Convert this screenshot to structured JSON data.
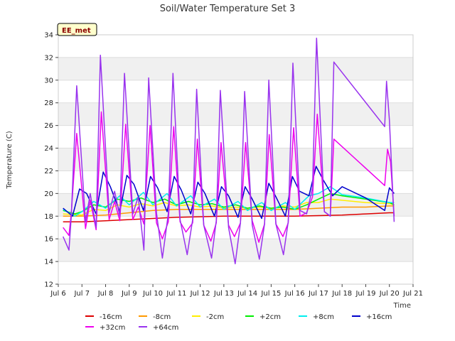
{
  "chart_data": {
    "type": "line",
    "title": "Soil/Water Temperature Set 3",
    "xlabel": "Time",
    "ylabel": "Temperature (C)",
    "tag": "EE_met",
    "xlim": [
      6,
      21
    ],
    "ylim": [
      12,
      34
    ],
    "x_ticks": [
      6,
      7,
      8,
      9,
      10,
      11,
      12,
      13,
      14,
      15,
      16,
      17,
      18,
      19,
      20,
      21
    ],
    "x_tick_labels": [
      "Jul 6",
      "Jul 7",
      "Jul 8",
      "Jul 9",
      "Jul 10",
      "Jul 11",
      "Jul 12",
      "Jul 13",
      "Jul 14",
      "Jul 15",
      "Jul 16",
      "Jul 17",
      "Jul 18",
      "Jul 19",
      "Jul 20",
      "Jul 21"
    ],
    "y_ticks": [
      12,
      14,
      16,
      18,
      20,
      22,
      24,
      26,
      28,
      30,
      32,
      34
    ],
    "grid": "horizontal bands",
    "legend_position": "bottom",
    "series": [
      {
        "name": "-16cm",
        "color": "#dd0000",
        "x": [
          6.2,
          7,
          8,
          9,
          10,
          11,
          12,
          13,
          14,
          15,
          16,
          17,
          18,
          19,
          20,
          20.2
        ],
        "y": [
          17.5,
          17.5,
          17.6,
          17.7,
          17.8,
          17.9,
          17.95,
          18.0,
          18.0,
          18.0,
          18.0,
          18.05,
          18.1,
          18.2,
          18.3,
          18.3
        ]
      },
      {
        "name": "-8cm",
        "color": "#ff9900",
        "x": [
          6.2,
          7,
          8,
          9,
          10,
          11,
          12,
          13,
          14,
          15,
          16,
          17,
          18,
          19,
          20,
          20.2
        ],
        "y": [
          18.0,
          18.0,
          18.1,
          18.3,
          18.5,
          18.6,
          18.6,
          18.6,
          18.6,
          18.6,
          18.6,
          18.7,
          18.8,
          18.8,
          18.9,
          18.9
        ]
      },
      {
        "name": "-2cm",
        "color": "#ffee00",
        "x": [
          6.2,
          7,
          7.5,
          8,
          8.5,
          9,
          9.5,
          10,
          10.5,
          11,
          11.5,
          12,
          12.5,
          13,
          13.5,
          14,
          14.5,
          15,
          15.5,
          16,
          16.5,
          17,
          17.5,
          18,
          19,
          20,
          20.2
        ],
        "y": [
          18.2,
          18.1,
          18.6,
          18.5,
          19.0,
          18.8,
          19.1,
          18.9,
          19.2,
          18.9,
          19.0,
          18.8,
          18.9,
          18.7,
          18.8,
          18.7,
          18.8,
          18.7,
          18.9,
          18.8,
          19.2,
          19.2,
          19.5,
          19.4,
          19.2,
          19.1,
          19.0
        ]
      },
      {
        "name": "+2cm",
        "color": "#00ee00",
        "x": [
          6.2,
          6.7,
          7,
          7.5,
          8,
          8.5,
          9,
          9.5,
          10,
          10.5,
          11,
          11.5,
          12,
          12.5,
          13,
          13.5,
          14,
          14.5,
          15,
          15.5,
          16,
          16.5,
          17,
          17.5,
          18,
          19,
          20,
          20.2
        ],
        "y": [
          18.5,
          18.2,
          18.4,
          19.0,
          18.8,
          19.5,
          19.3,
          19.6,
          19.2,
          19.5,
          19.0,
          19.3,
          19.0,
          19.1,
          18.8,
          19.0,
          18.7,
          18.9,
          18.7,
          18.8,
          18.6,
          19.0,
          19.5,
          20.0,
          19.8,
          19.5,
          19.2,
          19.0
        ]
      },
      {
        "name": "+8cm",
        "color": "#00eeee",
        "x": [
          6.2,
          6.7,
          7,
          7.5,
          8,
          8.6,
          9,
          9.6,
          10,
          10.6,
          11,
          11.6,
          12,
          12.6,
          13,
          13.6,
          14,
          14.6,
          15,
          15.6,
          16,
          16.6,
          17,
          17.5,
          18,
          19,
          20,
          20.2
        ],
        "y": [
          18.6,
          18.0,
          18.4,
          19.3,
          18.7,
          19.8,
          19.0,
          20.1,
          19.0,
          20.0,
          18.9,
          19.8,
          18.8,
          19.5,
          18.6,
          19.3,
          18.5,
          19.2,
          18.5,
          19.2,
          18.6,
          19.8,
          20.0,
          20.6,
          19.9,
          19.6,
          19.2,
          19.2
        ]
      },
      {
        "name": "+16cm",
        "color": "#0000cc",
        "x": [
          6.2,
          6.6,
          6.9,
          7.2,
          7.6,
          7.9,
          8.2,
          8.6,
          8.9,
          9.2,
          9.6,
          9.9,
          10.2,
          10.6,
          10.9,
          11.2,
          11.6,
          11.9,
          12.2,
          12.6,
          12.9,
          13.2,
          13.6,
          13.9,
          14.2,
          14.6,
          14.9,
          15.2,
          15.6,
          15.9,
          16.2,
          16.6,
          16.9,
          17.2,
          17.6,
          18.0,
          19.0,
          19.8,
          20.0,
          20.2
        ],
        "y": [
          18.7,
          18.0,
          20.4,
          20.0,
          18.2,
          21.9,
          20.6,
          18.4,
          21.6,
          20.8,
          18.5,
          21.5,
          20.5,
          18.4,
          21.5,
          20.3,
          18.2,
          21.0,
          20.0,
          18.0,
          20.6,
          19.8,
          17.9,
          20.6,
          19.5,
          17.8,
          20.9,
          19.7,
          18.0,
          21.5,
          20.2,
          19.8,
          22.4,
          21.2,
          19.8,
          20.6,
          19.6,
          18.5,
          20.5,
          20.0
        ]
      },
      {
        "name": "+32cm",
        "color": "#ee00ee",
        "x": [
          6.2,
          6.45,
          6.55,
          6.78,
          7.15,
          7.35,
          7.6,
          7.82,
          8.15,
          8.38,
          8.6,
          8.85,
          9.15,
          9.38,
          9.62,
          9.88,
          10.15,
          10.4,
          10.65,
          10.88,
          11.15,
          11.4,
          11.68,
          11.88,
          12.15,
          12.45,
          12.68,
          12.88,
          13.2,
          13.45,
          13.7,
          13.92,
          14.2,
          14.48,
          14.72,
          14.92,
          15.2,
          15.5,
          15.72,
          15.95,
          16.22,
          16.5,
          16.75,
          16.95,
          17.25,
          17.5,
          17.65,
          19.8,
          19.92,
          20.05,
          20.2
        ],
        "y": [
          17.0,
          16.3,
          18.3,
          25.3,
          16.9,
          19.4,
          16.8,
          27.2,
          17.7,
          19.3,
          17.6,
          26.1,
          17.7,
          18.8,
          17.3,
          26.0,
          17.4,
          16.0,
          17.5,
          25.9,
          17.5,
          16.6,
          17.4,
          24.8,
          17.2,
          15.8,
          17.4,
          24.5,
          17.2,
          16.2,
          17.4,
          24.5,
          17.6,
          15.7,
          17.3,
          25.2,
          17.3,
          16.2,
          17.4,
          25.8,
          18.0,
          18.3,
          19.7,
          27.0,
          18.4,
          18.0,
          24.8,
          20.7,
          23.9,
          22.8,
          18.0
        ]
      },
      {
        "name": "+64cm",
        "color": "#9933ee",
        "x": [
          6.2,
          6.45,
          6.55,
          6.78,
          7.15,
          7.35,
          7.6,
          7.78,
          8.15,
          8.38,
          8.6,
          8.8,
          9.15,
          9.38,
          9.62,
          9.82,
          10.15,
          10.4,
          10.65,
          10.85,
          11.15,
          11.45,
          11.68,
          11.85,
          12.15,
          12.48,
          12.68,
          12.85,
          13.2,
          13.48,
          13.7,
          13.88,
          14.2,
          14.5,
          14.72,
          14.9,
          15.2,
          15.52,
          15.72,
          15.92,
          16.22,
          16.5,
          16.75,
          16.92,
          17.25,
          17.5,
          17.65,
          19.8,
          19.88,
          20.0,
          20.2
        ],
        "y": [
          16.2,
          15.0,
          18.0,
          29.5,
          17.5,
          20.0,
          17.0,
          32.2,
          18.3,
          20.2,
          18.0,
          30.6,
          18.2,
          19.7,
          15.0,
          30.2,
          18.3,
          14.3,
          18.2,
          30.6,
          17.7,
          14.6,
          17.7,
          29.2,
          17.2,
          14.3,
          17.6,
          29.1,
          17.0,
          13.8,
          17.4,
          29.0,
          17.2,
          14.2,
          17.3,
          30.0,
          17.3,
          14.6,
          17.5,
          31.5,
          18.5,
          18.2,
          20.5,
          33.7,
          18.4,
          18.0,
          31.6,
          25.9,
          29.9,
          26.5,
          17.5
        ]
      }
    ]
  }
}
